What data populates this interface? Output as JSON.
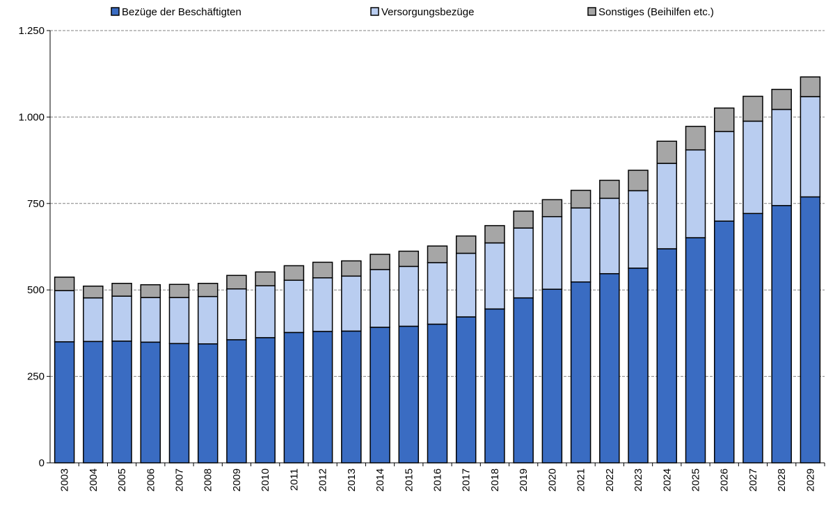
{
  "chart_data": {
    "type": "stacked-bar",
    "categories": [
      "2003",
      "2004",
      "2005",
      "2006",
      "2007",
      "2008",
      "2009",
      "2010",
      "2011",
      "2012",
      "2013",
      "2014",
      "2015",
      "2016",
      "2017",
      "2018",
      "2019",
      "2020",
      "2021",
      "2022",
      "2023",
      "2024",
      "2025",
      "2026",
      "2027",
      "2028",
      "2029"
    ],
    "series": [
      {
        "name": "Bezüge der Beschäftigten",
        "color": "#3a6cc2",
        "values": [
          350,
          351,
          352,
          349,
          345,
          344,
          356,
          362,
          377,
          380,
          381,
          392,
          395,
          401,
          422,
          445,
          477,
          502,
          523,
          547,
          563,
          619,
          651,
          699,
          721,
          744,
          769
        ]
      },
      {
        "name": "Versorgungsbezüge",
        "color": "#b9cdf0",
        "values": [
          148,
          126,
          130,
          129,
          133,
          137,
          147,
          150,
          151,
          155,
          159,
          167,
          173,
          178,
          184,
          191,
          202,
          210,
          214,
          218,
          224,
          247,
          254,
          259,
          267,
          278,
          290
        ]
      },
      {
        "name": "Sonstiges (Beihilfen etc.)",
        "color": "#a6a6a6",
        "values": [
          39,
          34,
          37,
          37,
          38,
          38,
          39,
          40,
          42,
          45,
          44,
          44,
          44,
          48,
          50,
          50,
          49,
          49,
          51,
          52,
          59,
          64,
          68,
          68,
          72,
          58,
          57
        ]
      }
    ],
    "ylim": [
      0,
      1250
    ],
    "yticks": [
      0,
      250,
      500,
      750,
      {
        "value": 1000,
        "label": "1.000"
      },
      {
        "value": 1250,
        "label": "1.250"
      }
    ],
    "grid": true,
    "legend": "top"
  }
}
